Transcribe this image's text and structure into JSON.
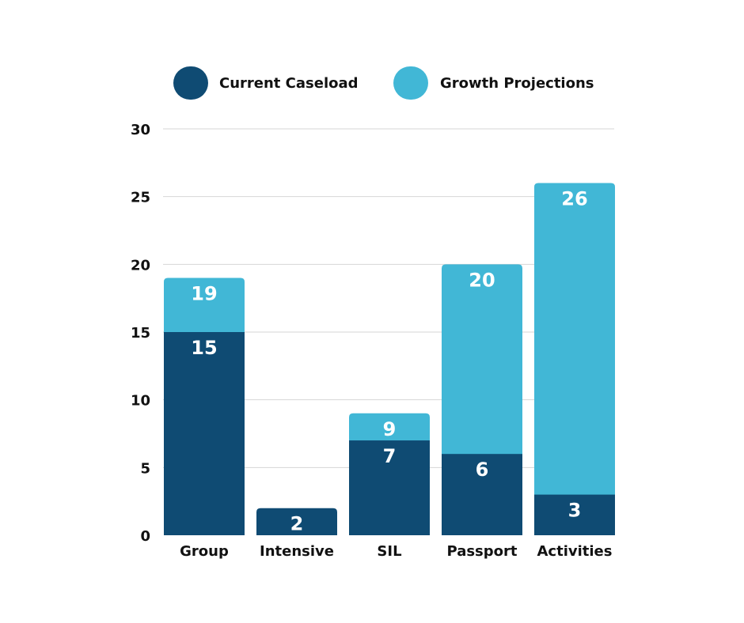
{
  "chart_data": {
    "type": "bar",
    "stacked": true,
    "categories": [
      "Group",
      "Intensive",
      "SIL",
      "Passport",
      "Activities"
    ],
    "series": [
      {
        "name": "Current Caseload",
        "color": "#0f4b73",
        "values": [
          15,
          2,
          7,
          6,
          3
        ]
      },
      {
        "name": "Growth Projections",
        "color": "#41b7d6",
        "totals": [
          19,
          null,
          9,
          20,
          26
        ]
      }
    ],
    "ylim": [
      0,
      30
    ],
    "yticks": [
      0,
      5,
      10,
      15,
      20,
      25,
      30
    ],
    "grid": true,
    "legend": "top-center"
  }
}
